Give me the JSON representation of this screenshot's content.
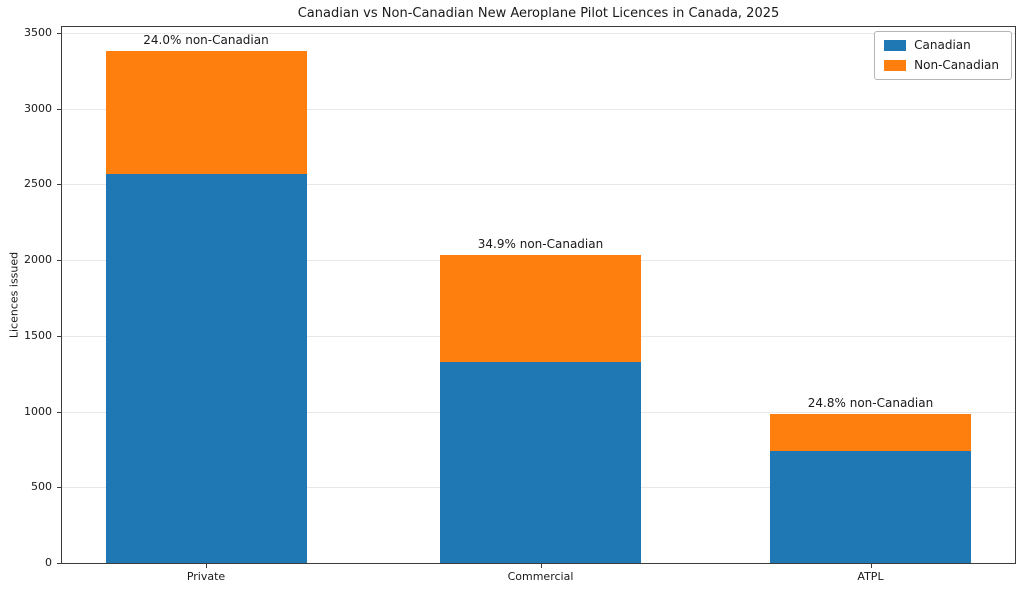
{
  "chart_data": {
    "type": "bar",
    "stacked": true,
    "title": "Canadian vs Non-Canadian New Aeroplane Pilot Licences in Canada, 2025",
    "xlabel": "",
    "ylabel": "Licences issued",
    "categories": [
      "Private",
      "Commercial",
      "ATPL"
    ],
    "series": [
      {
        "name": "Canadian",
        "color": "#1f77b4",
        "values": [
          2570,
          1325,
          740
        ]
      },
      {
        "name": "Non-Canadian",
        "color": "#ff7f0e",
        "values": [
          810,
          710,
          244
        ]
      }
    ],
    "totals": [
      3380,
      2035,
      984
    ],
    "annotations": [
      "24.0% non-Canadian",
      "34.9% non-Canadian",
      "24.8% non-Canadian"
    ],
    "yticks": [
      0,
      500,
      1000,
      1500,
      2000,
      2500,
      3000,
      3500
    ],
    "ylim": [
      0,
      3540
    ],
    "grid": true,
    "legend_position": "upper right",
    "background_color": "#ffffff",
    "text_color": "#1a1a1a",
    "gridline_color": "#e8e8e8"
  }
}
